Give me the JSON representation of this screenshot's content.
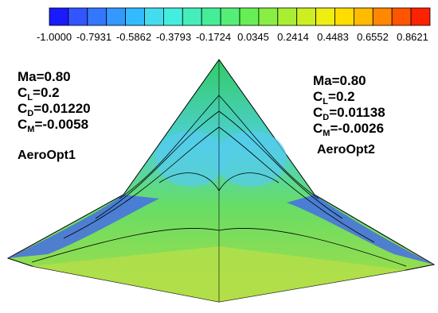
{
  "colorbar": {
    "labels": [
      "-1.0000",
      "-0.7931",
      "-0.5862",
      "-0.3793",
      "-0.1724",
      "0.0345",
      "0.2414",
      "0.4483",
      "0.6552",
      "0.8621"
    ]
  },
  "left": {
    "ma": "Ma=0.80",
    "cl": {
      "symbol": "C",
      "sub": "L",
      "value": "=0.2"
    },
    "cd": {
      "symbol": "C",
      "sub": "D",
      "value": "=0.01220"
    },
    "cm": {
      "symbol": "C",
      "sub": "M",
      "value": "=-0.0058"
    },
    "name": "AeroOpt1"
  },
  "right": {
    "ma": "Ma=0.80",
    "cl": {
      "symbol": "C",
      "sub": "L",
      "value": "=0.2"
    },
    "cd": {
      "symbol": "C",
      "sub": "D",
      "value": "=0.01138"
    },
    "cm": {
      "symbol": "C",
      "sub": "M",
      "value": "=-0.0026"
    },
    "name": "AeroOpt2"
  }
}
